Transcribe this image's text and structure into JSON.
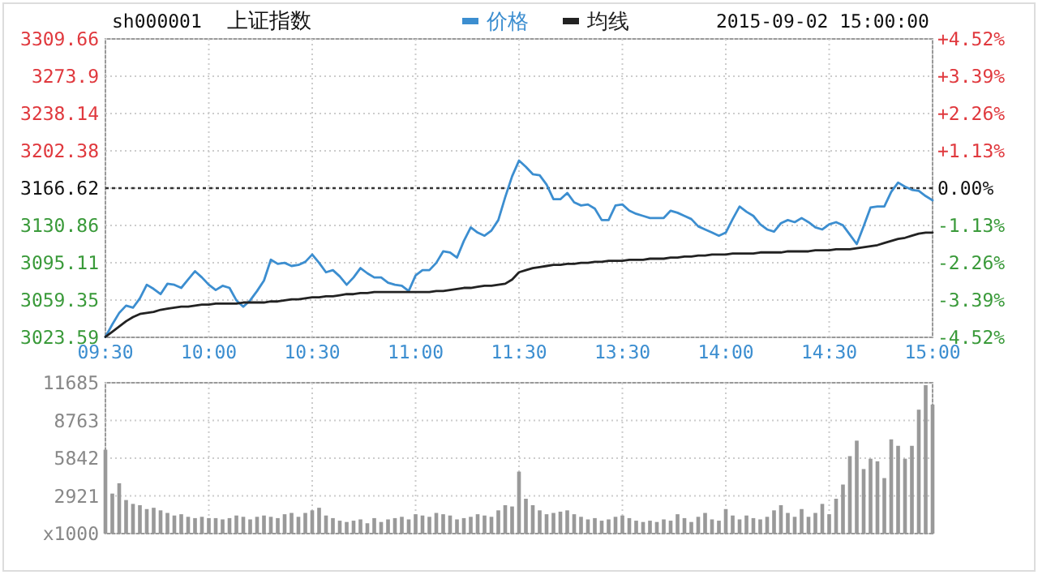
{
  "chart_data": [
    {
      "type": "line",
      "title": "上证指数",
      "subtitle": "sh000001",
      "annotations": [
        "2015-09-02 15:00:00"
      ],
      "legend": "top",
      "grid": true,
      "line_style": "solid",
      "marker": "none",
      "categories": [
        "09:30",
        null,
        null,
        null,
        null,
        null,
        null,
        null,
        null,
        null,
        null,
        null,
        null,
        null,
        null,
        "10:00",
        null,
        null,
        null,
        null,
        null,
        null,
        null,
        null,
        null,
        null,
        null,
        null,
        null,
        null,
        "10:30",
        null,
        null,
        null,
        null,
        null,
        null,
        null,
        null,
        null,
        null,
        null,
        null,
        null,
        null,
        "11:00",
        null,
        null,
        null,
        null,
        null,
        null,
        null,
        null,
        null,
        null,
        null,
        null,
        null,
        null,
        "11:30",
        null,
        null,
        null,
        null,
        null,
        null,
        null,
        null,
        null,
        null,
        null,
        null,
        null,
        null,
        "13:30",
        null,
        null,
        null,
        null,
        null,
        null,
        null,
        null,
        null,
        null,
        null,
        null,
        null,
        null,
        "14:00",
        null,
        null,
        null,
        null,
        null,
        null,
        null,
        null,
        null,
        null,
        null,
        null,
        null,
        null,
        "14:30",
        null,
        null,
        null,
        null,
        null,
        null,
        null,
        null,
        null,
        null,
        null,
        null,
        null,
        null,
        "15:00"
      ],
      "ylim": [
        3023.59,
        3309.66
      ],
      "yticks": [
        3023.59,
        3059.35,
        3095.11,
        3130.86,
        3166.62,
        3202.38,
        3238.14,
        3273.9,
        3309.66
      ],
      "y2lim": [
        -4.52,
        4.52
      ],
      "y2ticks": [
        {
          "value": -4.52,
          "label": "-4.52%"
        },
        {
          "value": -3.39,
          "label": "-3.39%"
        },
        {
          "value": -2.26,
          "label": "-2.26%"
        },
        {
          "value": -1.13,
          "label": "-1.13%"
        },
        {
          "value": 0,
          "label": "0.00%"
        },
        {
          "value": 1.13,
          "label": "+1.13%"
        },
        {
          "value": 2.26,
          "label": "+2.26%"
        },
        {
          "value": 3.39,
          "label": "+3.39%"
        },
        {
          "value": 4.52,
          "label": "+4.52%"
        }
      ],
      "ref_lines": [
        {
          "axis": "y",
          "value": 3166.62,
          "color": "#333333",
          "line_style": "dotted"
        }
      ],
      "series": [
        {
          "name": "价格",
          "color": "#3c8ed0",
          "values": [
            3024,
            3036,
            3047,
            3054,
            3052,
            3061,
            3074,
            3070,
            3065,
            3075,
            3074,
            3071,
            3079,
            3087,
            3081,
            3074,
            3069,
            3073,
            3071,
            3059,
            3053,
            3059,
            3068,
            3078,
            3098,
            3094,
            3095,
            3092,
            3093,
            3096,
            3103,
            3095,
            3086,
            3088,
            3082,
            3074,
            3081,
            3090,
            3085,
            3081,
            3081,
            3076,
            3074,
            3073,
            3068,
            3083,
            3088,
            3088,
            3095,
            3106,
            3105,
            3100,
            3116,
            3129,
            3124,
            3121,
            3126,
            3136,
            3158,
            3178,
            3193,
            3187,
            3180,
            3179,
            3170,
            3156,
            3156,
            3162,
            3153,
            3150,
            3151,
            3147,
            3136,
            3136,
            3150,
            3151,
            3145,
            3142,
            3140,
            3138,
            3138,
            3138,
            3145,
            3143,
            3140,
            3137,
            3130,
            3127,
            3124,
            3121,
            3124,
            3137,
            3149,
            3144,
            3140,
            3132,
            3127,
            3125,
            3133,
            3136,
            3134,
            3138,
            3134,
            3129,
            3127,
            3132,
            3134,
            3131,
            3122,
            3113,
            3130,
            3148,
            3149,
            3149,
            3163,
            3172,
            3168,
            3165,
            3164,
            3159,
            3155
          ]
        },
        {
          "name": "均线",
          "color": "#222222",
          "values": [
            3024,
            3029,
            3034,
            3039,
            3043,
            3046,
            3047,
            3048,
            3050,
            3051,
            3052,
            3053,
            3053,
            3054,
            3055,
            3055,
            3056,
            3056,
            3056,
            3056,
            3057,
            3057,
            3057,
            3057,
            3058,
            3058,
            3059,
            3060,
            3060,
            3061,
            3062,
            3062,
            3063,
            3063,
            3064,
            3065,
            3065,
            3066,
            3066,
            3067,
            3067,
            3067,
            3067,
            3067,
            3067,
            3067,
            3067,
            3067,
            3068,
            3068,
            3069,
            3070,
            3071,
            3071,
            3072,
            3073,
            3073,
            3074,
            3075,
            3079,
            3086,
            3088,
            3090,
            3091,
            3092,
            3093,
            3093,
            3094,
            3094,
            3095,
            3095,
            3096,
            3096,
            3097,
            3097,
            3097,
            3098,
            3098,
            3098,
            3099,
            3099,
            3099,
            3100,
            3100,
            3101,
            3101,
            3102,
            3102,
            3103,
            3103,
            3103,
            3104,
            3104,
            3104,
            3104,
            3105,
            3105,
            3105,
            3105,
            3106,
            3106,
            3106,
            3106,
            3107,
            3107,
            3107,
            3108,
            3108,
            3108,
            3109,
            3110,
            3111,
            3112,
            3114,
            3116,
            3118,
            3119,
            3121,
            3123,
            3124,
            3124
          ]
        }
      ]
    },
    {
      "type": "bar",
      "grid": true,
      "tick_labels": "y",
      "categories": [
        null,
        null,
        null,
        null,
        null,
        null,
        null,
        null,
        null,
        null,
        null,
        null,
        null,
        null,
        null,
        null,
        null,
        null,
        null,
        null,
        null,
        null,
        null,
        null,
        null,
        null,
        null,
        null,
        null,
        null,
        null,
        null,
        null,
        null,
        null,
        null,
        null,
        null,
        null,
        null,
        null,
        null,
        null,
        null,
        null,
        null,
        null,
        null,
        null,
        null,
        null,
        null,
        null,
        null,
        null,
        null,
        null,
        null,
        null,
        null,
        null,
        null,
        null,
        null,
        null,
        null,
        null,
        null,
        null,
        null,
        null,
        null,
        null,
        null,
        null,
        null,
        null,
        null,
        null,
        null,
        null,
        null,
        null,
        null,
        null,
        null,
        null,
        null,
        null,
        null,
        null,
        null,
        null,
        null,
        null,
        null,
        null,
        null,
        null,
        null,
        null,
        null,
        null,
        null,
        null,
        null,
        null,
        null,
        null,
        null,
        null,
        null,
        null,
        null,
        null,
        null,
        null,
        null,
        null,
        null,
        null
      ],
      "ylim": [
        0,
        11685
      ],
      "yticks": [
        {
          "value": 0,
          "label": "x1000"
        },
        2921,
        5842,
        8763,
        11685
      ],
      "series": [
        {
          "color": "#999999",
          "values": [
            6500,
            3100,
            3900,
            2600,
            2300,
            2200,
            1900,
            2000,
            1800,
            1600,
            1400,
            1500,
            1300,
            1200,
            1300,
            1200,
            1200,
            1100,
            1200,
            1400,
            1300,
            1100,
            1300,
            1400,
            1300,
            1200,
            1500,
            1600,
            1300,
            1600,
            1800,
            2000,
            1400,
            1200,
            1000,
            900,
            1000,
            1100,
            800,
            1200,
            900,
            1100,
            1200,
            1300,
            1100,
            1500,
            1400,
            1300,
            1600,
            1500,
            1400,
            1100,
            1200,
            1300,
            1500,
            1400,
            1300,
            1800,
            2200,
            2100,
            4800,
            2700,
            2200,
            1800,
            1500,
            1600,
            1700,
            1800,
            1500,
            1300,
            1100,
            1200,
            1000,
            1100,
            1300,
            1400,
            1200,
            1000,
            900,
            1000,
            900,
            1100,
            1000,
            1500,
            1200,
            900,
            1300,
            1600,
            1100,
            1000,
            1900,
            1400,
            1100,
            1400,
            1200,
            1100,
            1300,
            1800,
            2200,
            1600,
            1300,
            1900,
            1300,
            1600,
            2300,
            1500,
            2700,
            3800,
            6000,
            7200,
            5000,
            5800,
            5600,
            4300,
            7300,
            6800,
            5800,
            6800,
            9600,
            11500,
            10000
          ]
        }
      ]
    }
  ]
}
